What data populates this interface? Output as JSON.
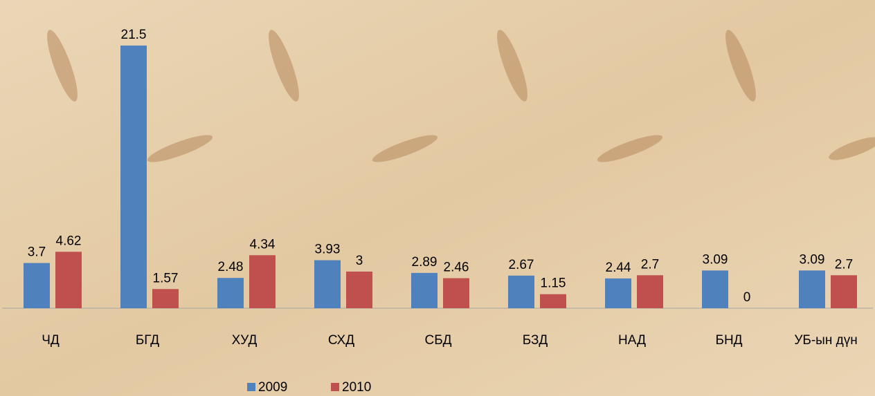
{
  "chart_data": {
    "type": "bar",
    "categories": [
      "ЧД",
      "БГД",
      "ХУД",
      "СХД",
      "СБД",
      "БЗД",
      "НАД",
      "БНД",
      "УБ-ын дүн"
    ],
    "series": [
      {
        "name": "2009",
        "color": "#4f81bd",
        "values": [
          3.7,
          21.5,
          2.48,
          3.93,
          2.89,
          2.67,
          2.44,
          3.09,
          3.09
        ]
      },
      {
        "name": "2010",
        "color": "#c0504d",
        "values": [
          4.62,
          1.57,
          4.34,
          3,
          2.46,
          1.15,
          2.7,
          0,
          2.7
        ]
      }
    ],
    "ylim": [
      0,
      25
    ],
    "legend": "bottom"
  }
}
